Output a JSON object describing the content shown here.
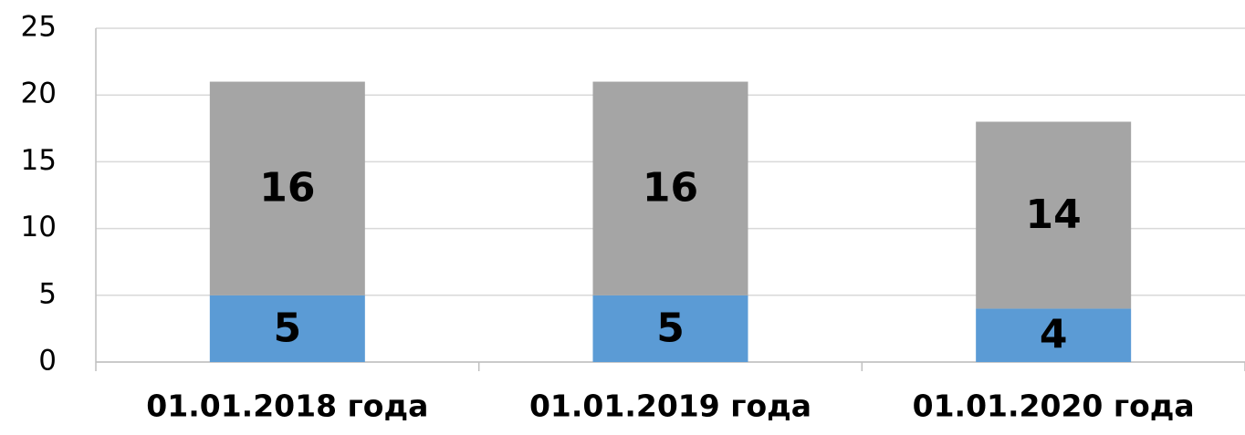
{
  "chart_data": {
    "type": "bar",
    "stacked": true,
    "categories": [
      "01.01.2018 года",
      "01.01.2019 года",
      "01.01.2020 года"
    ],
    "series": [
      {
        "color": "#5b9bd5",
        "values": [
          5,
          5,
          4
        ]
      },
      {
        "color": "#a5a5a5",
        "values": [
          16,
          16,
          14
        ]
      }
    ],
    "ylim": [
      0,
      25
    ],
    "yticks": [
      0,
      5,
      10,
      15,
      20,
      25
    ],
    "grid": true,
    "data_labels": true
  }
}
